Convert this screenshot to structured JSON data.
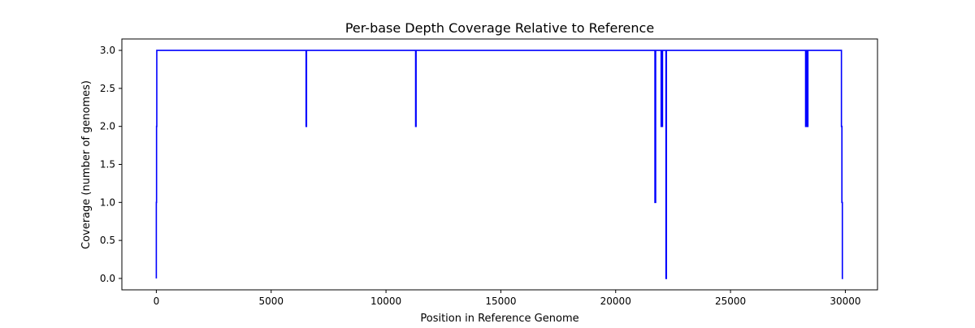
{
  "chart_data": {
    "type": "line",
    "title": "Per-base Depth Coverage Relative to Reference",
    "xlabel": "Position in Reference Genome",
    "ylabel": "Coverage (number of genomes)",
    "xlim": [
      -1500,
      31400
    ],
    "ylim": [
      -0.15,
      3.15
    ],
    "x_ticks": [
      0,
      5000,
      10000,
      15000,
      20000,
      25000,
      30000
    ],
    "x_tick_labels": [
      "0",
      "5000",
      "10000",
      "15000",
      "20000",
      "25000",
      "30000"
    ],
    "y_ticks": [
      0.0,
      0.5,
      1.0,
      1.5,
      2.0,
      2.5,
      3.0
    ],
    "y_tick_labels": [
      "0.0",
      "0.5",
      "1.0",
      "1.5",
      "2.0",
      "2.5",
      "3.0"
    ],
    "grid": false,
    "colors": {
      "line": "#0000ff"
    },
    "series": [
      {
        "x": [
          0,
          0,
          10,
          10,
          20,
          20,
          50,
          50,
          6520,
          6520,
          6540,
          6540,
          11290,
          11290,
          11310,
          11310,
          21710,
          21710,
          21740,
          21740,
          21980,
          21980,
          22000,
          22000,
          22020,
          22020,
          22040,
          22040,
          22190,
          22190,
          22210,
          22210,
          22220,
          22220,
          28270,
          28270,
          28290,
          28290,
          28340,
          28340,
          28370,
          28370,
          29830,
          29830,
          29850,
          29850,
          29870,
          29870,
          29900
        ],
        "y": [
          0,
          1,
          1,
          2,
          2,
          3,
          3,
          3,
          3,
          2,
          2,
          3,
          3,
          2,
          2,
          3,
          3,
          1,
          1,
          3,
          3,
          2,
          2,
          3,
          3,
          2,
          2,
          3,
          3,
          0,
          0,
          3,
          3,
          3,
          3,
          2,
          2,
          3,
          3,
          2,
          2,
          3,
          3,
          2,
          2,
          1,
          1,
          0,
          0
        ]
      }
    ]
  }
}
